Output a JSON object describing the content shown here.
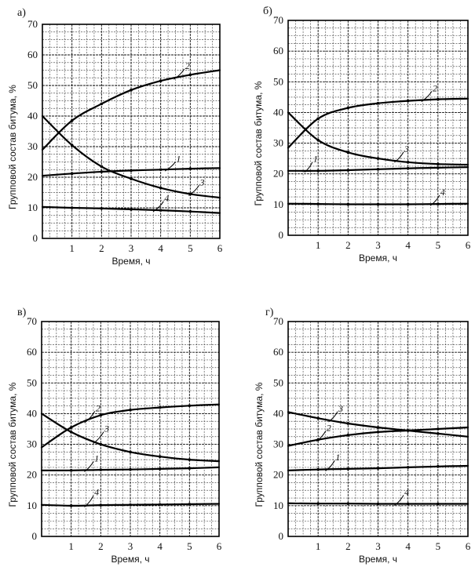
{
  "chart_data": [
    {
      "type": "line",
      "panel": "а)",
      "title": "",
      "xlabel": "Время, ч",
      "ylabel": "Групповой состав битума, %",
      "xlim": [
        0,
        6
      ],
      "ylim": [
        0,
        70
      ],
      "xticks": [
        "1",
        "2",
        "3",
        "4",
        "5",
        "6"
      ],
      "yticks": [
        "0",
        "10",
        "20",
        "30",
        "40",
        "50",
        "60",
        "70"
      ],
      "grid": true,
      "x": [
        0,
        1,
        2,
        3,
        4,
        5,
        6
      ],
      "series": [
        {
          "name": "1",
          "values": [
            20.5,
            21.2,
            21.8,
            22.2,
            22.5,
            22.8,
            23.0
          ]
        },
        {
          "name": "2",
          "values": [
            29.0,
            38.5,
            44.0,
            48.5,
            51.5,
            53.5,
            55.0
          ]
        },
        {
          "name": "3",
          "values": [
            40.0,
            30.5,
            23.5,
            19.5,
            16.5,
            14.5,
            13.3
          ]
        },
        {
          "name": "4",
          "values": [
            10.3,
            10.0,
            9.8,
            9.5,
            9.2,
            8.8,
            8.3
          ]
        }
      ]
    },
    {
      "type": "line",
      "panel": "б)",
      "title": "",
      "xlabel": "Время, ч",
      "ylabel": "Групповой состав битума, %",
      "xlim": [
        0,
        6
      ],
      "ylim": [
        0,
        70
      ],
      "xticks": [
        "1",
        "2",
        "3",
        "4",
        "5",
        "6"
      ],
      "yticks": [
        "0",
        "10",
        "20",
        "30",
        "40",
        "50",
        "60",
        "70"
      ],
      "grid": true,
      "x": [
        0,
        1,
        2,
        3,
        4,
        5,
        6
      ],
      "series": [
        {
          "name": "1",
          "values": [
            21.0,
            21.0,
            21.2,
            21.5,
            21.8,
            22.0,
            22.2
          ]
        },
        {
          "name": "2",
          "values": [
            28.5,
            38.0,
            41.5,
            43.0,
            43.8,
            44.3,
            44.5
          ]
        },
        {
          "name": "3",
          "values": [
            40.0,
            31.0,
            27.0,
            25.0,
            23.8,
            23.2,
            23.0
          ]
        },
        {
          "name": "4",
          "values": [
            10.3,
            10.2,
            10.1,
            10.1,
            10.1,
            10.2,
            10.3
          ]
        }
      ]
    },
    {
      "type": "line",
      "panel": "в)",
      "title": "",
      "xlabel": "Время, ч",
      "ylabel": "Групповой состав битума, %",
      "xlim": [
        0,
        6
      ],
      "ylim": [
        0,
        70
      ],
      "xticks": [
        "1",
        "2",
        "3",
        "4",
        "5",
        "6"
      ],
      "yticks": [
        "0",
        "10",
        "20",
        "30",
        "40",
        "50",
        "60",
        "70"
      ],
      "grid": true,
      "x": [
        0,
        1,
        2,
        3,
        4,
        5,
        6
      ],
      "series": [
        {
          "name": "1",
          "values": [
            21.5,
            21.5,
            21.7,
            21.8,
            22.0,
            22.2,
            22.5
          ]
        },
        {
          "name": "2",
          "values": [
            29.0,
            35.5,
            39.5,
            41.2,
            42.0,
            42.6,
            43.0
          ]
        },
        {
          "name": "3",
          "values": [
            40.0,
            34.0,
            30.0,
            27.5,
            26.0,
            25.0,
            24.5
          ]
        },
        {
          "name": "4",
          "values": [
            10.3,
            10.0,
            10.2,
            10.3,
            10.4,
            10.5,
            10.6
          ]
        }
      ]
    },
    {
      "type": "line",
      "panel": "г)",
      "title": "",
      "xlabel": "Время, ч",
      "ylabel": "Групповой состав битума, %",
      "xlim": [
        0,
        6
      ],
      "ylim": [
        0,
        70
      ],
      "xticks": [
        "1",
        "2",
        "3",
        "4",
        "5",
        "6"
      ],
      "yticks": [
        "0",
        "10",
        "20",
        "30",
        "40",
        "50",
        "60",
        "70"
      ],
      "grid": true,
      "x": [
        0,
        1,
        2,
        3,
        4,
        5,
        6
      ],
      "series": [
        {
          "name": "1",
          "values": [
            21.5,
            21.8,
            22.0,
            22.2,
            22.5,
            22.8,
            23.0
          ]
        },
        {
          "name": "2",
          "values": [
            29.5,
            31.5,
            33.0,
            34.0,
            34.5,
            35.0,
            35.5
          ]
        },
        {
          "name": "3",
          "values": [
            40.5,
            38.5,
            36.8,
            35.5,
            34.5,
            33.5,
            32.5
          ]
        },
        {
          "name": "4",
          "values": [
            10.8,
            10.7,
            10.7,
            10.6,
            10.6,
            10.6,
            10.6
          ]
        }
      ]
    }
  ]
}
